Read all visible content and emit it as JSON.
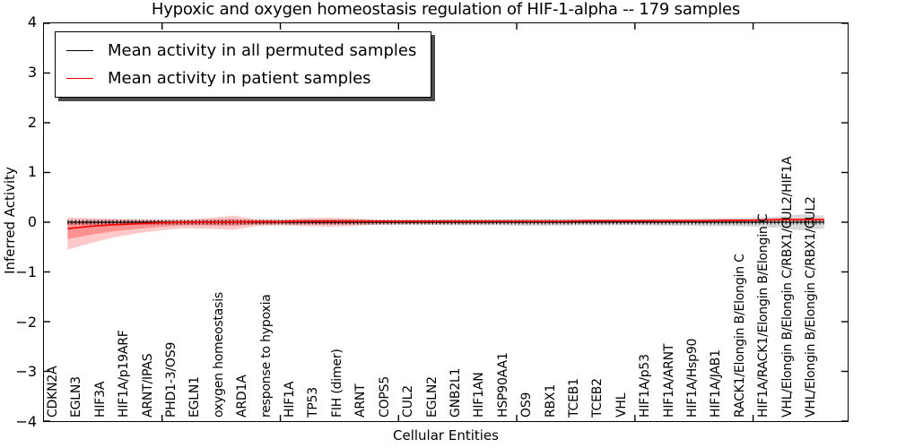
{
  "title": "Hypoxic and oxygen homeostasis regulation of HIF-1-alpha -- 179 samples",
  "axes": {
    "ylabel": "Inferred Activity",
    "xlabel": "Cellular Entities",
    "ylim": [
      -4,
      4
    ],
    "xlim": [
      0,
      34
    ],
    "yticks": [
      4,
      3,
      2,
      1,
      0,
      -1,
      -2,
      -3,
      -4
    ],
    "xticks_major": [
      5,
      10,
      15,
      20,
      25,
      30
    ]
  },
  "legend": {
    "items": [
      {
        "label": "Mean activity in all permuted samples",
        "color": "#000000"
      },
      {
        "label": "Mean activity in patient samples",
        "color": "#ff0000"
      }
    ]
  },
  "colors": {
    "permuted_line": "#000000",
    "patient_line": "#ff0000",
    "permuted_band": "rgba(0,0,0,0.15)",
    "patient_band_outer": "rgba(255,40,40,0.25)",
    "patient_band_inner": "rgba(255,40,40,0.35)"
  },
  "chart_data": {
    "type": "line",
    "title": "Hypoxic and oxygen homeostasis regulation of HIF-1-alpha -- 179 samples",
    "xlabel": "Cellular Entities",
    "ylabel": "Inferred Activity",
    "ylim": [
      -4,
      4
    ],
    "xlim": [
      0,
      34
    ],
    "legend_position": "upper left",
    "grid": false,
    "categories": [
      "CDKN2A",
      "EGLN3",
      "HIF3A",
      "HIF1A/p19ARF",
      "ARNT/IPAS",
      "PHD1-3/OS9",
      "EGLN1",
      "oxygen homeostasis",
      "ARD1A",
      "response to hypoxia",
      "HIF1A",
      "TP53",
      "FIH (dimer)",
      "ARNT",
      "COPS5",
      "CUL2",
      "EGLN2",
      "GNB2L1",
      "HIF1AN",
      "HSP90AA1",
      "OS9",
      "RBX1",
      "TCEB1",
      "TCEB2",
      "VHL",
      "HIF1A/p53",
      "HIF1A/ARNT",
      "HIF1A/Hsp90",
      "HIF1A/JAB1",
      "RACK1/Elongin B/Elongin C",
      "HIF1A/RACK1/Elongin B/Elongin C",
      "VHL/Elongin B/Elongin C/RBX1/CUL2/HIF1A",
      "VHL/Elongin B/Elongin C/RBX1/CUL2"
    ],
    "x": [
      1,
      2,
      3,
      4,
      5,
      6,
      7,
      8,
      9,
      10,
      11,
      12,
      13,
      14,
      15,
      16,
      17,
      18,
      19,
      20,
      21,
      22,
      23,
      24,
      25,
      26,
      27,
      28,
      29,
      30,
      31,
      32,
      33
    ],
    "series": [
      {
        "name": "Mean activity in all permuted samples",
        "color": "#000000",
        "width": 1.2,
        "tick_markers": true,
        "values": [
          0,
          0,
          0,
          0,
          0,
          0,
          0,
          0,
          0,
          0,
          0,
          0,
          0,
          0,
          0,
          0,
          0,
          0,
          0,
          0,
          0,
          0,
          0,
          0,
          0,
          0,
          0,
          0,
          0,
          0,
          0,
          0,
          0
        ]
      },
      {
        "name": "Mean activity in patient samples",
        "color": "#ff0000",
        "width": 1.6,
        "tick_markers": false,
        "values": [
          -0.13,
          -0.08,
          -0.05,
          -0.03,
          -0.01,
          0,
          0,
          0,
          0.01,
          0.01,
          0.02,
          0.02,
          0.02,
          0.02,
          0.02,
          0.02,
          0.02,
          0.02,
          0.02,
          0.02,
          0.02,
          0.02,
          0.03,
          0.03,
          0.03,
          0.03,
          0.03,
          0.03,
          0.04,
          0.04,
          0.05,
          0.05,
          0.05
        ]
      }
    ],
    "bands": [
      {
        "name": "permuted-sample-range",
        "color": "rgba(0,0,0,0.15)",
        "hi": [
          0.05,
          0.05,
          0.05,
          0.05,
          0.05,
          0.05,
          0.05,
          0.05,
          0.05,
          0.05,
          0.05,
          0.05,
          0.05,
          0.05,
          0.05,
          0.05,
          0.06,
          0.06,
          0.06,
          0.07,
          0.07,
          0.07,
          0.06,
          0.06,
          0.06,
          0.07,
          0.07,
          0.08,
          0.08,
          0.09,
          0.11,
          0.16,
          0.13
        ],
        "lo": [
          -0.05,
          -0.05,
          -0.05,
          -0.05,
          -0.05,
          -0.05,
          -0.05,
          -0.05,
          -0.05,
          -0.05,
          -0.05,
          -0.05,
          -0.05,
          -0.05,
          -0.05,
          -0.05,
          -0.06,
          -0.06,
          -0.06,
          -0.07,
          -0.07,
          -0.07,
          -0.06,
          -0.06,
          -0.06,
          -0.07,
          -0.07,
          -0.08,
          -0.08,
          -0.09,
          -0.11,
          -0.16,
          -0.13
        ]
      },
      {
        "name": "patient-range-outer",
        "color": "rgba(255,40,40,0.25)",
        "hi": [
          0.1,
          0.08,
          0.07,
          0.06,
          0.05,
          0.05,
          0.09,
          0.13,
          0.06,
          0.05,
          0.08,
          0.09,
          0.08,
          0.05,
          0.04,
          0.04,
          0.04,
          0.04,
          0.04,
          0.04,
          0.04,
          0.04,
          0.05,
          0.05,
          0.05,
          0.05,
          0.05,
          0.05,
          0.06,
          0.06,
          0.08,
          0.08,
          0.08
        ],
        "lo": [
          -0.55,
          -0.42,
          -0.3,
          -0.22,
          -0.16,
          -0.12,
          -0.13,
          -0.15,
          -0.08,
          -0.06,
          -0.08,
          -0.09,
          -0.08,
          -0.05,
          -0.04,
          -0.04,
          -0.04,
          -0.04,
          -0.03,
          -0.03,
          -0.03,
          -0.03,
          -0.02,
          -0.02,
          -0.02,
          -0.02,
          -0.01,
          -0.01,
          0.0,
          0.01,
          0.02,
          0.02,
          0.02
        ]
      },
      {
        "name": "patient-range-inner",
        "color": "rgba(255,40,40,0.35)",
        "hi": [
          -0.02,
          0.0,
          0.01,
          0.015,
          0.02,
          0.025,
          0.045,
          0.065,
          0.035,
          0.03,
          0.05,
          0.055,
          0.05,
          0.035,
          0.03,
          0.03,
          0.03,
          0.03,
          0.03,
          0.03,
          0.03,
          0.03,
          0.04,
          0.04,
          0.04,
          0.04,
          0.04,
          0.04,
          0.05,
          0.05,
          0.065,
          0.065,
          0.065
        ],
        "lo": [
          -0.34,
          -0.25,
          -0.18,
          -0.13,
          -0.09,
          -0.06,
          -0.065,
          -0.075,
          -0.035,
          -0.025,
          -0.03,
          -0.035,
          -0.03,
          -0.015,
          -0.01,
          -0.01,
          -0.01,
          -0.01,
          -0.005,
          -0.005,
          -0.005,
          -0.005,
          0.005,
          0.005,
          0.005,
          0.005,
          0.01,
          0.01,
          0.02,
          0.025,
          0.035,
          0.035,
          0.035
        ]
      }
    ]
  }
}
